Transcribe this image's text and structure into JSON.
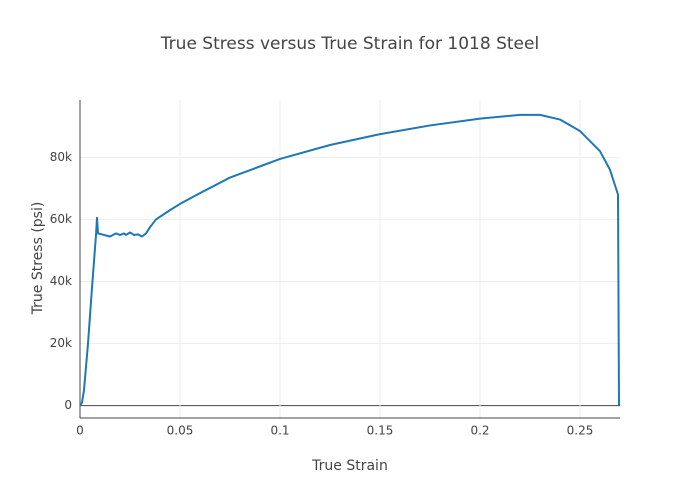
{
  "chart_data": {
    "type": "line",
    "title": "True Stress versus True Strain for 1018 Steel",
    "x_label": "True Strain",
    "y_label": "True Stress (psi)",
    "x": [
      0,
      0.001,
      0.002,
      0.004,
      0.006,
      0.008,
      0.0085,
      0.009,
      0.012,
      0.015,
      0.018,
      0.02,
      0.022,
      0.023,
      0.025,
      0.027,
      0.029,
      0.031,
      0.033,
      0.035,
      0.038,
      0.045,
      0.05,
      0.06,
      0.075,
      0.1,
      0.125,
      0.15,
      0.175,
      0.2,
      0.22,
      0.23,
      0.24,
      0.25,
      0.26,
      0.265,
      0.269,
      0.2695
    ],
    "series": [
      {
        "color": "#1f77b4",
        "values": [
          0,
          1000,
          5000,
          20000,
          38000,
          55000,
          60500,
          55500,
          55000,
          54500,
          55500,
          55000,
          55500,
          55000,
          55800,
          55000,
          55200,
          54500,
          55500,
          57500,
          60000,
          63000,
          65000,
          68500,
          73500,
          79500,
          84000,
          87500,
          90300,
          92500,
          93700,
          93700,
          92200,
          88500,
          82000,
          76000,
          68000,
          0
        ]
      }
    ],
    "xlim": [
      0,
      0.27
    ],
    "ylim": [
      -4000,
      98500
    ],
    "xticks": [
      0,
      0.05,
      0.1,
      0.15,
      0.2,
      0.25
    ],
    "yticks": [
      0,
      {
        "value": 20000,
        "label": "20k"
      },
      {
        "value": 40000,
        "label": "40k"
      },
      {
        "value": 60000,
        "label": "60k"
      },
      {
        "value": 80000,
        "label": "80k"
      }
    ],
    "grid": true
  }
}
